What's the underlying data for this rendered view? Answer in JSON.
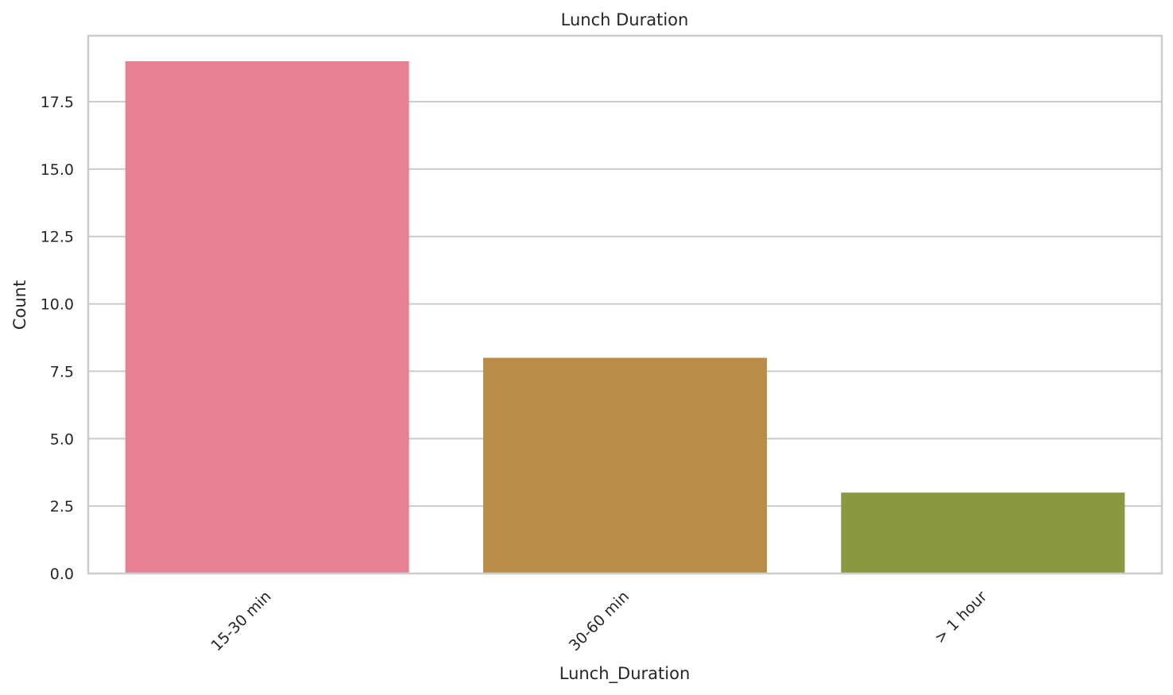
{
  "chart_data": {
    "type": "bar",
    "title": "Lunch Duration",
    "xlabel": "Lunch_Duration",
    "ylabel": "Count",
    "categories": [
      "15-30 min",
      "30-60 min",
      "> 1 hour"
    ],
    "values": [
      19,
      8,
      3
    ],
    "colors": [
      "#e88093",
      "#b98c48",
      "#8b9842"
    ],
    "ylim": [
      0,
      20
    ],
    "yticks": [
      "0.0",
      "2.5",
      "5.0",
      "7.5",
      "10.0",
      "12.5",
      "15.0",
      "17.5"
    ],
    "grid": "horizontal",
    "legend": "none"
  }
}
